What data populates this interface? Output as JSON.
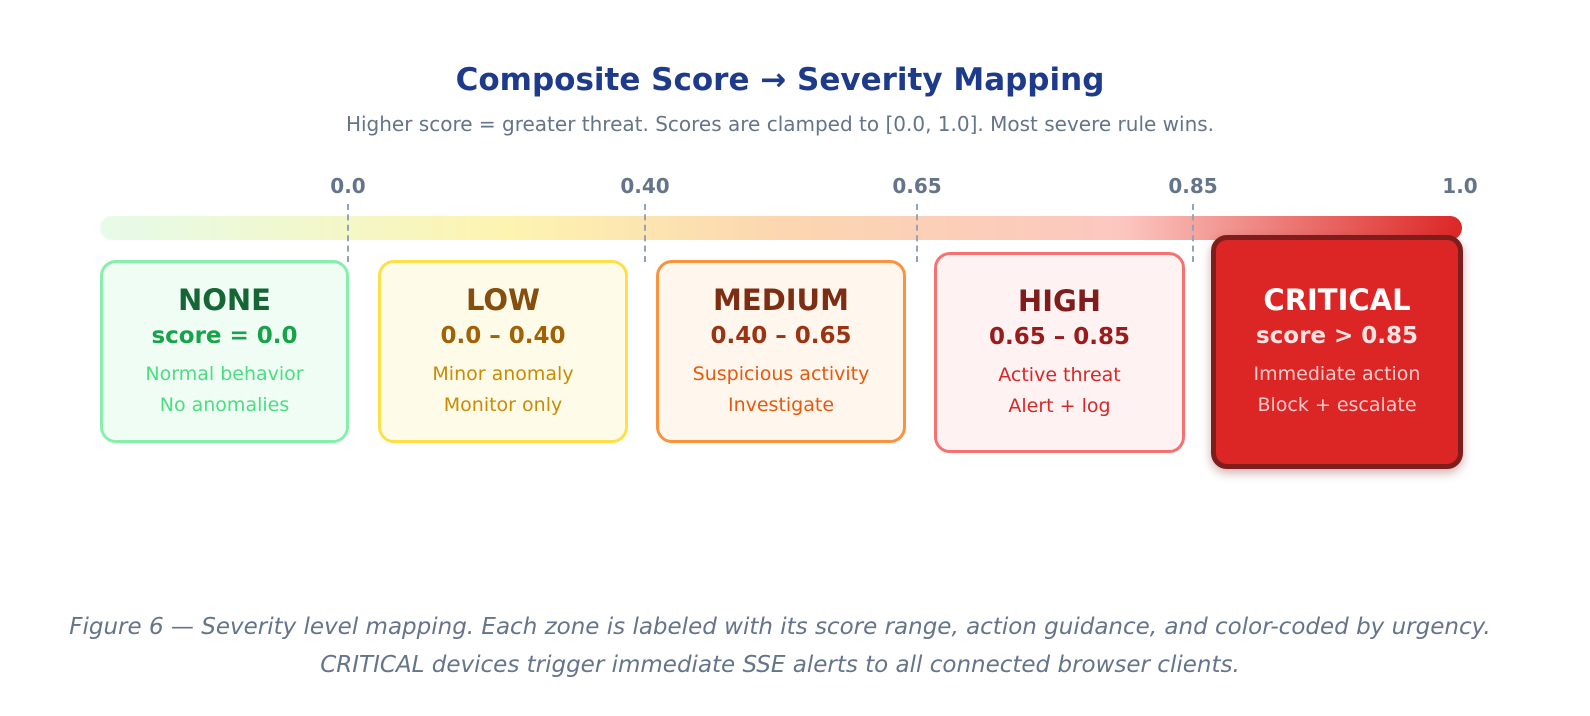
{
  "header": {
    "title": "Composite Score → Severity Mapping",
    "subtitle": "Higher score = greater threat. Scores are clamped to [0.0, 1.0]. Most severe rule wins."
  },
  "scale": {
    "ticks": [
      "0.0",
      "0.40",
      "0.65",
      "0.85",
      "1.0"
    ]
  },
  "levels": [
    {
      "name": "NONE",
      "range": "score = 0.0",
      "lines": [
        "Normal behavior",
        "No anomalies"
      ]
    },
    {
      "name": "LOW",
      "range": "0.0 – 0.40",
      "lines": [
        "Minor anomaly",
        "Monitor only"
      ]
    },
    {
      "name": "MEDIUM",
      "range": "0.40 – 0.65",
      "lines": [
        "Suspicious activity",
        "Investigate"
      ]
    },
    {
      "name": "HIGH",
      "range": "0.65 – 0.85",
      "lines": [
        "Active threat",
        "Alert + log"
      ]
    },
    {
      "name": "CRITICAL",
      "range": "score > 0.85",
      "lines": [
        "Immediate action",
        "Block + escalate"
      ]
    }
  ],
  "caption": [
    "Figure 6 — Severity level mapping. Each zone is labeled with its score range, action guidance, and color-coded by urgency.",
    "CRITICAL devices trigger immediate SSE alerts to all connected browser clients."
  ]
}
